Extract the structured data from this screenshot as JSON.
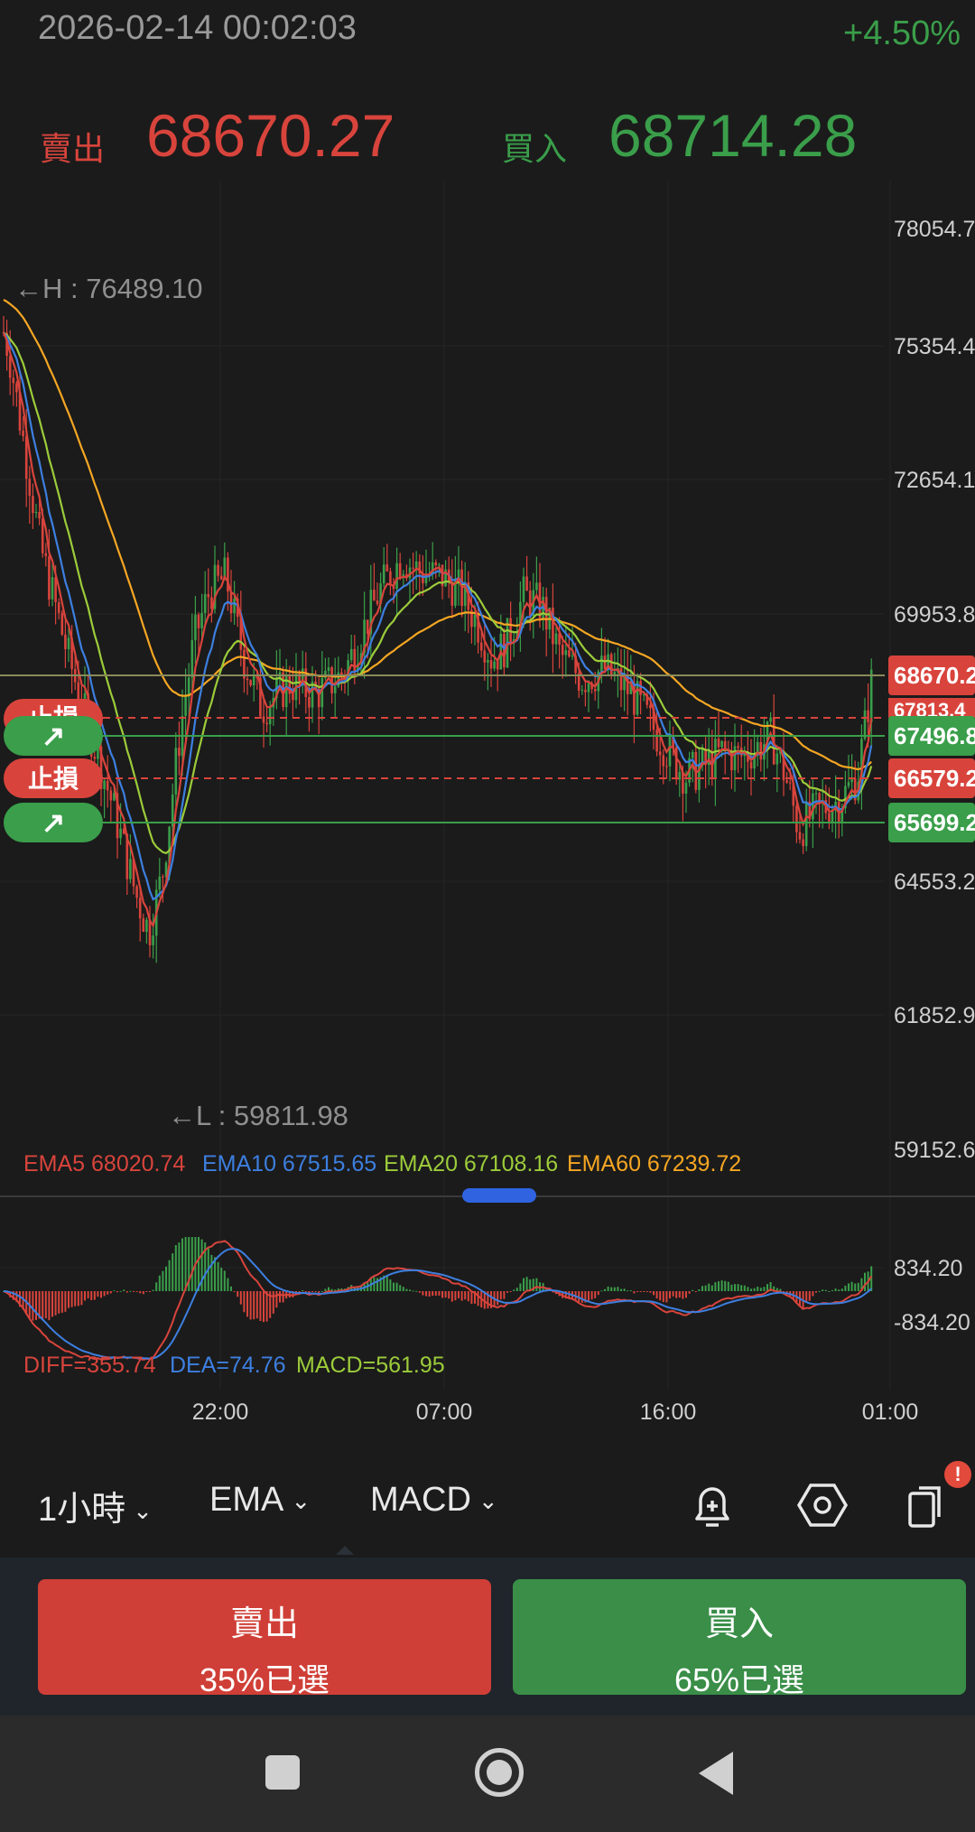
{
  "header": {
    "timestamp": "2026-02-14 00:02:03",
    "change": "+4.50%",
    "sell_label": "賣出",
    "sell_price": "68670.27",
    "buy_label": "買入",
    "buy_price": "68714.28"
  },
  "colors": {
    "red": "#d8443c",
    "green": "#3a9e4a",
    "ema5": "#d8443c",
    "ema10": "#3d7fe0",
    "ema20": "#9ccc3a",
    "ema60": "#f5a623",
    "background": "#1b1b1b"
  },
  "chart": {
    "y_ticks": [
      "78054.7",
      "75354.4",
      "72654.1",
      "69953.8",
      "64553.2",
      "61852.9",
      "59152.6"
    ],
    "price_tags": [
      {
        "text": "68670.2",
        "color": "red"
      },
      {
        "text": "67813.4",
        "color": "red"
      },
      {
        "text": "67496.8",
        "color": "green"
      },
      {
        "text": "66579.2",
        "color": "red"
      },
      {
        "text": "65699.2",
        "color": "green"
      }
    ],
    "order_markers": [
      {
        "text": "止損",
        "type": "stop"
      },
      {
        "text": "↗",
        "type": "buy"
      },
      {
        "text": "止損",
        "type": "stop"
      },
      {
        "text": "↗",
        "type": "buy"
      }
    ],
    "high_label": "←H : 76489.10",
    "low_label": "←L : 59811.98",
    "ema_legend": [
      {
        "text": "EMA5 68020.74",
        "color": "#d8443c"
      },
      {
        "text": "EMA10 67515.65",
        "color": "#3d7fe0"
      },
      {
        "text": "EMA20 67108.16",
        "color": "#9ccc3a"
      },
      {
        "text": "EMA60 67239.72",
        "color": "#f5a623"
      }
    ],
    "macd_ticks": [
      "834.20",
      "-834.20"
    ],
    "macd_legend": [
      {
        "text": "DIFF=355.74",
        "color": "#d8443c"
      },
      {
        "text": "DEA=74.76",
        "color": "#3d7fe0"
      },
      {
        "text": "MACD=561.95",
        "color": "#9ccc3a"
      }
    ],
    "time_labels": [
      "22:00",
      "07:00",
      "16:00",
      "01:00"
    ]
  },
  "toolbar": {
    "interval": "1小時",
    "indicator": "EMA",
    "sub_indicator": "MACD",
    "alert_icon": "add-alert-icon",
    "settings_icon": "settings-icon",
    "multi_icon": "multi-window-icon",
    "badge": "!"
  },
  "actions": {
    "sell_title": "賣出",
    "sell_sub": "35%已選",
    "buy_title": "買入",
    "buy_sub": "65%已選"
  }
}
